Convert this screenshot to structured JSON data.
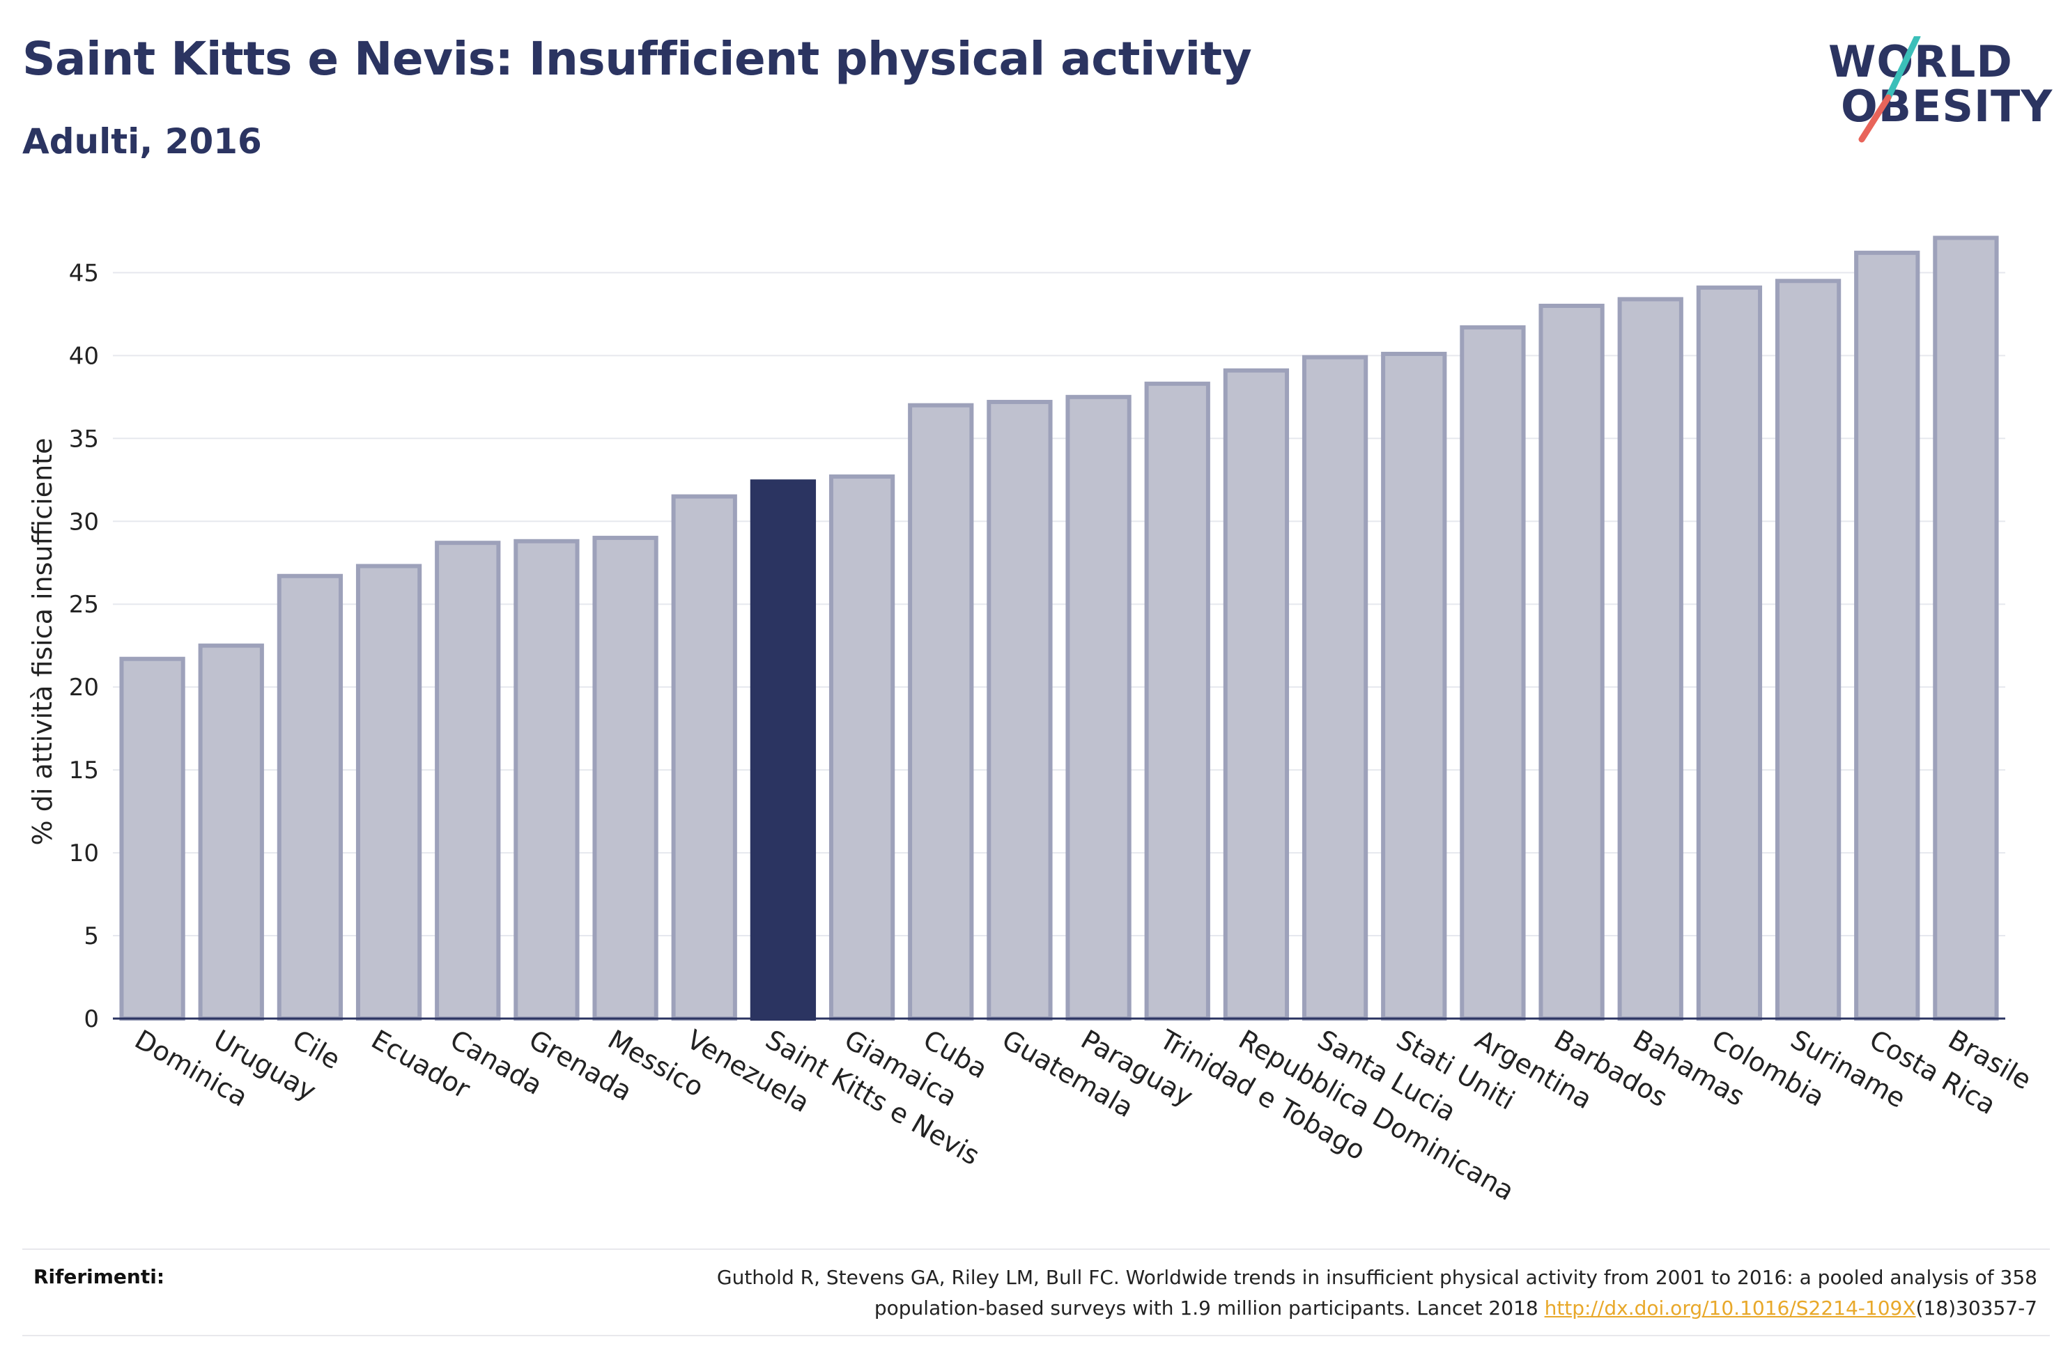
{
  "header": {
    "title": "Saint Kitts e Nevis: Insufficient physical activity",
    "subtitle": "Adulti, 2016"
  },
  "logo": {
    "line1": "WORLD",
    "line2": "OBESITY",
    "colors": {
      "text": "#2b3461",
      "slash_teal": "#3bbfb9",
      "slash_red": "#e8645a"
    }
  },
  "chart_data": {
    "type": "bar",
    "ylabel": "% di attività fisica insufficiente",
    "xlabel": "",
    "ylim": [
      0,
      48
    ],
    "yticks": [
      0,
      5,
      10,
      15,
      20,
      25,
      30,
      35,
      40,
      45
    ],
    "grid": true,
    "highlight": "Saint Kitts e Nevis",
    "colors": {
      "bar": "#bfc1cf",
      "bar_border": "#9da1ba",
      "highlight": "#2b3461",
      "grid": "#e6e8ee",
      "axis": "#2b3461"
    },
    "categories": [
      "Dominica",
      "Uruguay",
      "Cile",
      "Ecuador",
      "Canada",
      "Grenada",
      "Messico",
      "Venezuela",
      "Saint Kitts e Nevis",
      "Giamaica",
      "Cuba",
      "Guatemala",
      "Paraguay",
      "Trinidad e Tobago",
      "Repubblica Dominicana",
      "Santa Lucia",
      "Stati Uniti",
      "Argentina",
      "Barbados",
      "Bahamas",
      "Colombia",
      "Suriname",
      "Costa Rica",
      "Brasile"
    ],
    "values": [
      21.7,
      22.5,
      26.7,
      27.3,
      28.7,
      28.8,
      29.0,
      31.5,
      32.4,
      32.7,
      37.0,
      37.2,
      37.5,
      38.3,
      39.1,
      39.9,
      40.1,
      41.7,
      43.0,
      43.4,
      44.1,
      44.5,
      46.2,
      47.1
    ]
  },
  "references": {
    "label": "Riferimenti:",
    "line1": "Guthold R, Stevens GA, Riley LM, Bull FC. Worldwide trends in insufficient physical activity from 2001 to 2016: a pooled analysis of 358",
    "line2_prefix": "population-based surveys with 1.9 million participants. Lancet 2018 ",
    "link": "http://dx.doi.org/10.1016/S2214-109X",
    "line2_suffix": "(18)30357-7"
  }
}
